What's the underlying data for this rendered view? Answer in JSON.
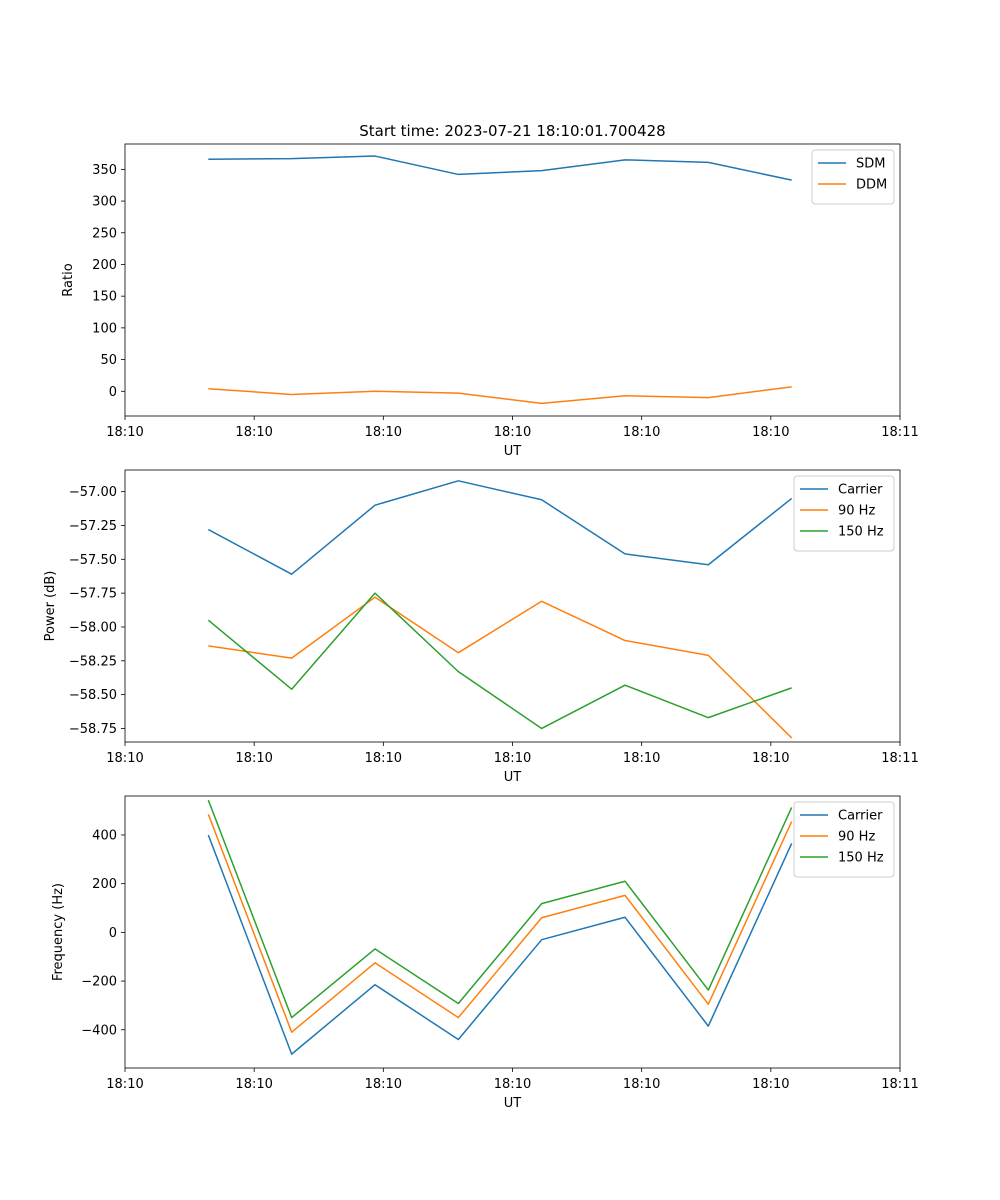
{
  "figure_title": "Start time: 2023-07-21 18:10:01.700428",
  "colors": {
    "c0": "#1f77b4",
    "c1": "#ff7f0e",
    "c2": "#2ca02c"
  },
  "chart_data": [
    {
      "type": "line",
      "title": "Start time: 2023-07-21 18:10:01.700428",
      "xlabel": "UT",
      "ylabel": "Ratio",
      "x": [
        1,
        2,
        3,
        4,
        5,
        6,
        7,
        8
      ],
      "xlim": [
        0,
        9.3
      ],
      "xticks": [
        0,
        1.55,
        3.1,
        4.65,
        6.2,
        7.75,
        9.3
      ],
      "xtick_labels": [
        "18:10",
        "18:10",
        "18:10",
        "18:10",
        "18:10",
        "18:10",
        "18:11"
      ],
      "ylim": [
        -39,
        390
      ],
      "yticks": [
        0,
        50,
        100,
        150,
        200,
        250,
        300,
        350
      ],
      "ytick_labels": [
        "0",
        "50",
        "100",
        "150",
        "200",
        "250",
        "300",
        "350"
      ],
      "legend_position": "top-right",
      "series": [
        {
          "name": "SDM",
          "color": "#1f77b4",
          "values": [
            366,
            367,
            371,
            342,
            348,
            365,
            361,
            333
          ]
        },
        {
          "name": "DDM",
          "color": "#ff7f0e",
          "values": [
            4,
            -5,
            0,
            -3,
            -19,
            -7,
            -10,
            7
          ]
        }
      ]
    },
    {
      "type": "line",
      "xlabel": "UT",
      "ylabel": "Power (dB)",
      "x": [
        1,
        2,
        3,
        4,
        5,
        6,
        7,
        8
      ],
      "xlim": [
        0,
        9.3
      ],
      "xticks": [
        0,
        1.55,
        3.1,
        4.65,
        6.2,
        7.75,
        9.3
      ],
      "xtick_labels": [
        "18:10",
        "18:10",
        "18:10",
        "18:10",
        "18:10",
        "18:10",
        "18:11"
      ],
      "ylim": [
        -58.85,
        -56.84
      ],
      "yticks": [
        -58.75,
        -58.5,
        -58.25,
        -58.0,
        -57.75,
        -57.5,
        -57.25,
        -57.0
      ],
      "ytick_labels": [
        "−58.75",
        "−58.50",
        "−58.25",
        "−58.00",
        "−57.75",
        "−57.50",
        "−57.25",
        "−57.00"
      ],
      "legend_position": "top-right",
      "series": [
        {
          "name": "Carrier",
          "color": "#1f77b4",
          "values": [
            -57.28,
            -57.61,
            -57.1,
            -56.92,
            -57.06,
            -57.46,
            -57.54,
            -57.05
          ]
        },
        {
          "name": "90 Hz",
          "color": "#ff7f0e",
          "values": [
            -58.14,
            -58.23,
            -57.78,
            -58.19,
            -57.81,
            -58.1,
            -58.21,
            -58.82
          ]
        },
        {
          "name": "150 Hz",
          "color": "#2ca02c",
          "values": [
            -57.95,
            -58.46,
            -57.75,
            -58.33,
            -58.75,
            -58.43,
            -58.67,
            -58.45
          ]
        }
      ]
    },
    {
      "type": "line",
      "xlabel": "UT",
      "ylabel": "Frequency (Hz)",
      "x": [
        1,
        2,
        3,
        4,
        5,
        6,
        7,
        8
      ],
      "xlim": [
        0,
        9.3
      ],
      "xticks": [
        0,
        1.55,
        3.1,
        4.65,
        6.2,
        7.75,
        9.3
      ],
      "xtick_labels": [
        "18:10",
        "18:10",
        "18:10",
        "18:10",
        "18:10",
        "18:10",
        "18:11"
      ],
      "ylim": [
        -557,
        560
      ],
      "yticks": [
        -400,
        -200,
        0,
        200,
        400
      ],
      "ytick_labels": [
        "−400",
        "−200",
        "0",
        "200",
        "400"
      ],
      "legend_position": "top-right",
      "series": [
        {
          "name": "Carrier",
          "color": "#1f77b4",
          "values": [
            400,
            -500,
            -215,
            -440,
            -30,
            62,
            -385,
            365
          ]
        },
        {
          "name": "90 Hz",
          "color": "#ff7f0e",
          "values": [
            485,
            -410,
            -125,
            -350,
            60,
            152,
            -295,
            455
          ]
        },
        {
          "name": "150 Hz",
          "color": "#2ca02c",
          "values": [
            543,
            -350,
            -68,
            -292,
            118,
            210,
            -237,
            513
          ]
        }
      ]
    }
  ]
}
